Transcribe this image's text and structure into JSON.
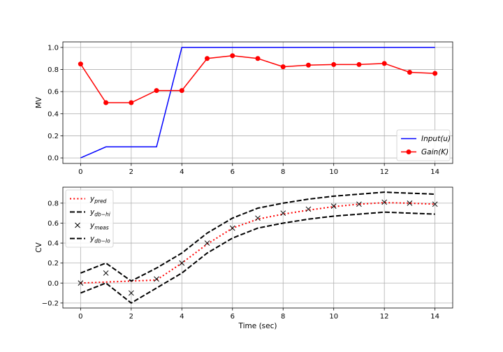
{
  "chart_data": [
    {
      "type": "line",
      "ylabel": "MV",
      "xlabel": "",
      "xlim": [
        -0.7,
        14.7
      ],
      "ylim": [
        -0.05,
        1.05
      ],
      "xticks": [
        0,
        2,
        4,
        6,
        8,
        10,
        12,
        14
      ],
      "yticks": [
        0.0,
        0.2,
        0.4,
        0.6,
        0.8,
        1.0
      ],
      "ytick_labels": [
        "0.0",
        "0.2",
        "0.4",
        "0.6",
        "0.8",
        "1.0"
      ],
      "grid": true,
      "legend_position": "lower-right",
      "series": [
        {
          "name_main": "Input(",
          "name_sub": "",
          "name_tail": "u)",
          "name_prefix": "",
          "style": "solid",
          "color": "#0000ff",
          "marker": "none",
          "x": [
            0,
            1,
            2,
            3,
            4,
            5,
            6,
            7,
            8,
            9,
            10,
            11,
            12,
            13,
            14
          ],
          "y": [
            0.0,
            0.1,
            0.1,
            0.1,
            1.0,
            1.0,
            1.0,
            1.0,
            1.0,
            1.0,
            1.0,
            1.0,
            1.0,
            1.0,
            1.0
          ]
        },
        {
          "name_main": "Gain(",
          "name_sub": "",
          "name_tail": "K)",
          "name_prefix": "",
          "style": "solid",
          "color": "#ff0000",
          "marker": "circle",
          "x": [
            0,
            1,
            2,
            3,
            4,
            5,
            6,
            7,
            8,
            9,
            10,
            11,
            12,
            13,
            14
          ],
          "y": [
            0.85,
            0.5,
            0.5,
            0.61,
            0.61,
            0.9,
            0.925,
            0.9,
            0.825,
            0.84,
            0.845,
            0.845,
            0.855,
            0.775,
            0.765
          ]
        }
      ]
    },
    {
      "type": "line",
      "ylabel": "CV",
      "xlabel": "Time (sec)",
      "xlim": [
        -0.7,
        14.7
      ],
      "ylim": [
        -0.25,
        0.96
      ],
      "xticks": [
        0,
        2,
        4,
        6,
        8,
        10,
        12,
        14
      ],
      "yticks": [
        -0.2,
        0.0,
        0.2,
        0.4,
        0.6,
        0.8
      ],
      "ytick_labels": [
        "−0.2",
        "0.0",
        "0.2",
        "0.4",
        "0.6",
        "0.8"
      ],
      "grid": true,
      "legend_position": "upper-left",
      "series": [
        {
          "name_main": "y",
          "name_sub": "pred",
          "style": "dotted",
          "color": "#ff0000",
          "marker": "none",
          "x": [
            0,
            1,
            2,
            3,
            4,
            5,
            6,
            7,
            8,
            9,
            10,
            11,
            12,
            13,
            14
          ],
          "y": [
            0.0,
            0.01,
            0.02,
            0.03,
            0.2,
            0.39,
            0.55,
            0.64,
            0.69,
            0.73,
            0.765,
            0.79,
            0.805,
            0.8,
            0.79
          ]
        },
        {
          "name_main": "y",
          "name_sub": "db−hi",
          "style": "dashed",
          "color": "#000000",
          "marker": "none",
          "x": [
            0,
            1,
            2,
            3,
            4,
            5,
            6,
            7,
            8,
            9,
            10,
            11,
            12,
            13,
            14
          ],
          "y": [
            0.1,
            0.2,
            0.02,
            0.15,
            0.3,
            0.5,
            0.65,
            0.75,
            0.8,
            0.84,
            0.87,
            0.89,
            0.91,
            0.9,
            0.89
          ]
        },
        {
          "name_main": "y",
          "name_sub": "meas",
          "style": "none",
          "color": "#000000",
          "marker": "x",
          "x": [
            0,
            1,
            2,
            3,
            4,
            5,
            6,
            7,
            8,
            9,
            10,
            11,
            12,
            13,
            14
          ],
          "y": [
            0.0,
            0.1,
            -0.1,
            0.04,
            0.2,
            0.4,
            0.55,
            0.65,
            0.7,
            0.74,
            0.77,
            0.79,
            0.81,
            0.8,
            0.79
          ]
        },
        {
          "name_main": "y",
          "name_sub": "db−lo",
          "style": "dashed",
          "color": "#000000",
          "marker": "none",
          "x": [
            0,
            1,
            2,
            3,
            4,
            5,
            6,
            7,
            8,
            9,
            10,
            11,
            12,
            13,
            14
          ],
          "y": [
            -0.1,
            0.0,
            -0.2,
            -0.05,
            0.1,
            0.3,
            0.45,
            0.55,
            0.6,
            0.64,
            0.67,
            0.69,
            0.71,
            0.7,
            0.69
          ]
        }
      ]
    }
  ]
}
